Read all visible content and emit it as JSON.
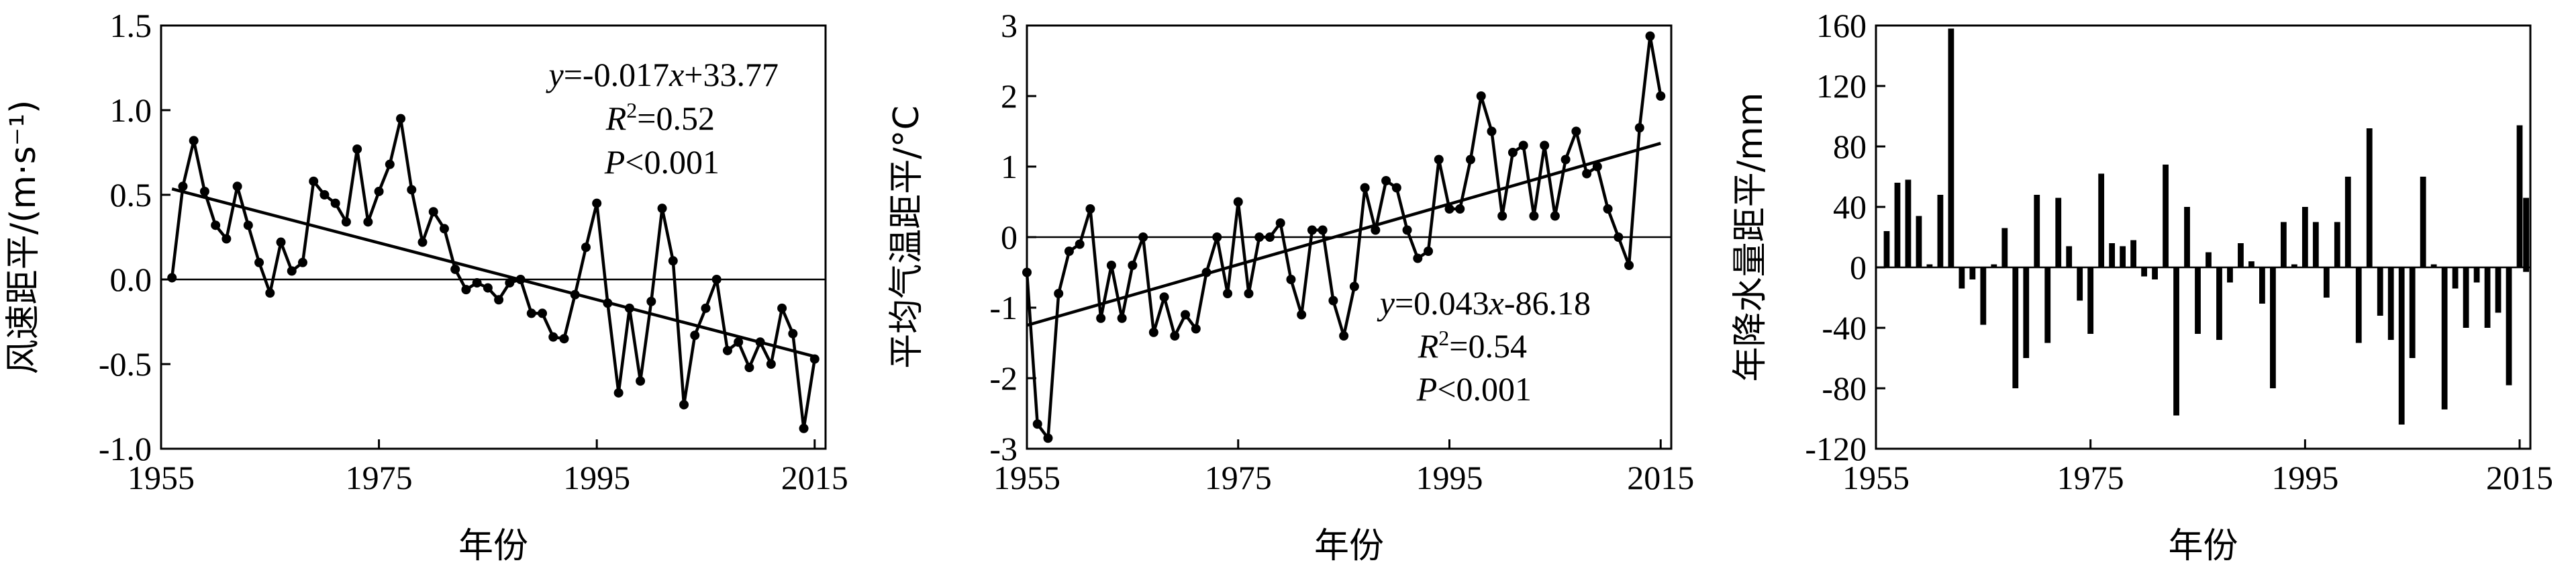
{
  "chart_data": [
    {
      "type": "line",
      "ylabel": "风速距平/(m·s⁻¹)",
      "xlabel": "年份",
      "xlim": [
        1955,
        2016
      ],
      "ylim": [
        -1.0,
        1.5
      ],
      "x_ticks": [
        1955,
        1975,
        1995,
        2015
      ],
      "x_tick_labels": [
        "1955",
        "1975",
        "1995",
        "2015"
      ],
      "y_ticks": [
        -1.0,
        -0.5,
        0.0,
        0.5,
        1.0,
        1.5
      ],
      "y_tick_labels": [
        "-1.0",
        "-0.5",
        "0.0",
        "0.5",
        "1.0",
        "1.5"
      ],
      "x": [
        1956,
        1957,
        1958,
        1959,
        1960,
        1961,
        1962,
        1963,
        1964,
        1965,
        1966,
        1967,
        1968,
        1969,
        1970,
        1971,
        1972,
        1973,
        1974,
        1975,
        1976,
        1977,
        1978,
        1979,
        1980,
        1981,
        1982,
        1983,
        1984,
        1985,
        1986,
        1987,
        1988,
        1989,
        1990,
        1991,
        1992,
        1993,
        1994,
        1995,
        1996,
        1997,
        1998,
        1999,
        2000,
        2001,
        2002,
        2003,
        2004,
        2005,
        2006,
        2007,
        2008,
        2009,
        2010,
        2011,
        2012,
        2013,
        2014,
        2015
      ],
      "values": [
        0.01,
        0.55,
        0.82,
        0.52,
        0.32,
        0.24,
        0.55,
        0.32,
        0.1,
        -0.08,
        0.22,
        0.05,
        0.1,
        0.58,
        0.5,
        0.45,
        0.34,
        0.77,
        0.34,
        0.52,
        0.68,
        0.95,
        0.53,
        0.22,
        0.4,
        0.3,
        0.06,
        -0.06,
        -0.02,
        -0.05,
        -0.12,
        -0.02,
        0.0,
        -0.2,
        -0.2,
        -0.34,
        -0.35,
        -0.09,
        0.19,
        0.45,
        -0.14,
        -0.67,
        -0.17,
        -0.6,
        -0.13,
        0.42,
        0.11,
        -0.74,
        -0.33,
        -0.17,
        0.0,
        -0.42,
        -0.37,
        -0.52,
        -0.37,
        -0.5,
        -0.17,
        -0.32,
        -0.88,
        -0.47
      ],
      "trend": {
        "x": [
          1956,
          2015
        ],
        "y": [
          0.535,
          -0.455
        ]
      },
      "equation": {
        "y_part": "y",
        "eq_mid": "=-0.017",
        "x_part": "x",
        "eq_tail": "+33.77"
      },
      "r2": {
        "letter": "R",
        "sup": "2",
        "tail": "=0.52"
      },
      "p": {
        "letter": "P",
        "tail": "<0.001"
      }
    },
    {
      "type": "line",
      "ylabel": "平均气温距平/°C",
      "xlabel": "年份",
      "xlim": [
        1955,
        2016
      ],
      "ylim": [
        -3,
        3
      ],
      "x_ticks": [
        1955,
        1975,
        1995,
        2015
      ],
      "x_tick_labels": [
        "1955",
        "1975",
        "1995",
        "2015"
      ],
      "y_ticks": [
        -3,
        -2,
        -1,
        0,
        1,
        2,
        3
      ],
      "y_tick_labels": [
        "-3",
        "-2",
        "-1",
        "0",
        "1",
        "2",
        "3"
      ],
      "x": [
        1955,
        1956,
        1957,
        1958,
        1959,
        1960,
        1961,
        1962,
        1963,
        1964,
        1965,
        1966,
        1967,
        1968,
        1969,
        1970,
        1971,
        1972,
        1973,
        1974,
        1975,
        1976,
        1977,
        1978,
        1979,
        1980,
        1981,
        1982,
        1983,
        1984,
        1985,
        1986,
        1987,
        1988,
        1989,
        1990,
        1991,
        1992,
        1993,
        1994,
        1995,
        1996,
        1997,
        1998,
        1999,
        2000,
        2001,
        2002,
        2003,
        2004,
        2005,
        2006,
        2007,
        2008,
        2009,
        2010,
        2011,
        2012,
        2013,
        2014,
        2015
      ],
      "values": [
        -0.5,
        -2.65,
        -2.85,
        -0.8,
        -0.2,
        -0.1,
        0.4,
        -1.15,
        -0.4,
        -1.15,
        -0.4,
        0.0,
        -1.35,
        -0.85,
        -1.4,
        -1.1,
        -1.3,
        -0.5,
        0.0,
        -0.8,
        0.5,
        -0.8,
        0.0,
        0.0,
        0.2,
        -0.6,
        -1.1,
        0.1,
        0.1,
        -0.9,
        -1.4,
        -0.7,
        0.7,
        0.1,
        0.8,
        0.7,
        0.1,
        -0.3,
        -0.2,
        1.1,
        0.4,
        0.4,
        1.1,
        2.0,
        1.5,
        0.3,
        1.2,
        1.3,
        0.3,
        1.3,
        0.3,
        1.1,
        1.5,
        0.9,
        1.0,
        0.4,
        0.0,
        -0.4,
        1.55,
        2.85,
        2.0
      ],
      "trend": {
        "x": [
          1955,
          2015
        ],
        "y": [
          -1.25,
          1.33
        ]
      },
      "equation": {
        "y_part": "y",
        "eq_mid": "=0.043",
        "x_part": "x",
        "eq_tail": "-86.18"
      },
      "r2": {
        "letter": "R",
        "sup": "2",
        "tail": "=0.54"
      },
      "p": {
        "letter": "P",
        "tail": "<0.001"
      }
    },
    {
      "type": "bar",
      "ylabel": "年降水量距平/mm",
      "xlabel": "年份",
      "xlim": [
        1955,
        2016
      ],
      "ylim": [
        -120,
        160
      ],
      "x_ticks": [
        1955,
        1975,
        1995,
        2015
      ],
      "x_tick_labels": [
        "1955",
        "1975",
        "1995",
        "2015"
      ],
      "y_ticks": [
        -120,
        -80,
        -40,
        0,
        40,
        80,
        120,
        160
      ],
      "y_tick_labels": [
        "-120",
        "-80",
        "-40",
        "0",
        "40",
        "80",
        "120",
        "160"
      ],
      "x": [
        1956,
        1957,
        1958,
        1959,
        1960,
        1961,
        1962,
        1963,
        1964,
        1965,
        1966,
        1967,
        1968,
        1969,
        1970,
        1971,
        1972,
        1973,
        1974,
        1975,
        1976,
        1977,
        1978,
        1979,
        1980,
        1981,
        1982,
        1983,
        1984,
        1985,
        1986,
        1987,
        1988,
        1989,
        1990,
        1991,
        1992,
        1993,
        1994,
        1995,
        1996,
        1997,
        1998,
        1999,
        2000,
        2001,
        2002,
        2003,
        2004,
        2005,
        2006,
        2007,
        2008,
        2009,
        2010,
        2011,
        2012,
        2013,
        2014,
        2015
      ],
      "values": [
        24,
        56,
        58,
        34,
        2,
        48,
        158,
        -14,
        -8,
        -38,
        2,
        26,
        -80,
        -60,
        48,
        -50,
        46,
        14,
        -22,
        -44,
        62,
        16,
        14,
        18,
        -6,
        -8,
        68,
        -98,
        40,
        -44,
        10,
        -48,
        -10,
        16,
        4,
        -24,
        -80,
        30,
        2,
        40,
        30,
        -20,
        30,
        60,
        -50,
        92,
        -32,
        -48,
        -104,
        -60,
        60,
        2,
        -94,
        -14,
        -40,
        -10,
        -40,
        -30,
        -78,
        94
      ],
      "values_tail": {
        "x": [
          2016,
          2016.5
        ],
        "values": [
          -3,
          46
        ]
      }
    }
  ]
}
